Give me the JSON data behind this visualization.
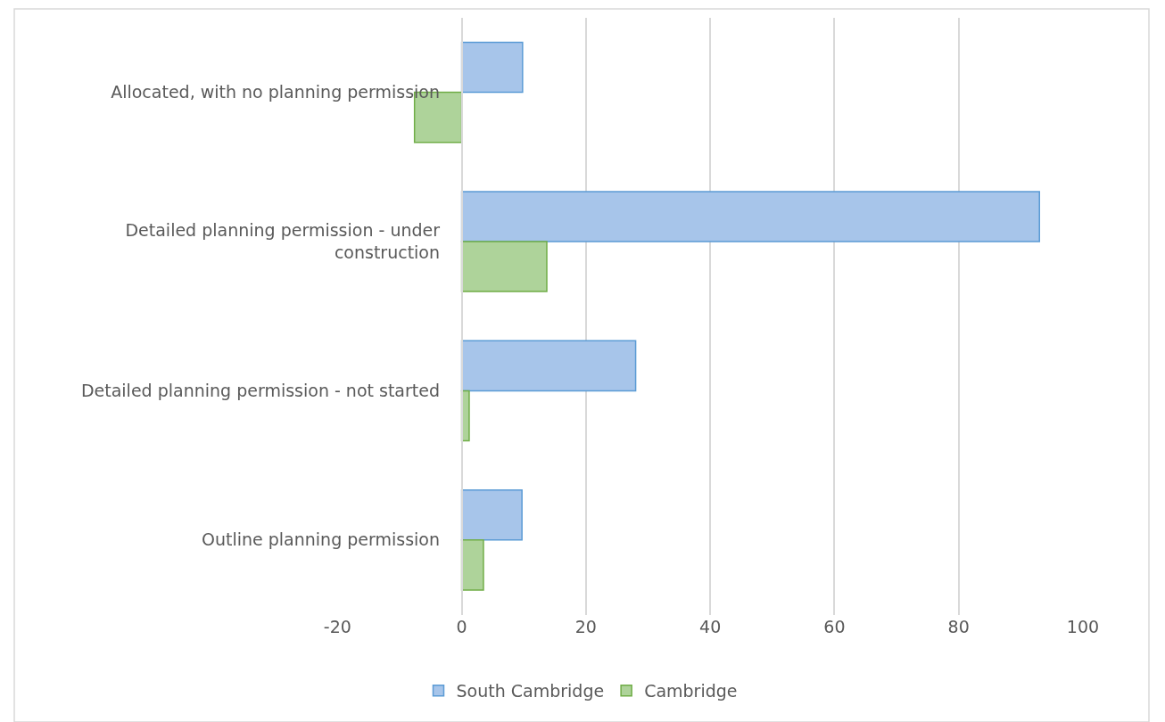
{
  "chart_data": {
    "type": "bar",
    "orientation": "horizontal",
    "categories": [
      "Allocated, with no planning permission",
      "Detailed planning permission - under construction",
      "Detailed planning permission - not started",
      "Outline planning permission"
    ],
    "series": [
      {
        "name": "South Cambridge",
        "color": "#a7c5ea",
        "values": [
          9.8,
          93,
          28,
          9.7
        ]
      },
      {
        "name": "Cambridge",
        "color": "#aed39a",
        "values": [
          -7.6,
          13.7,
          1.2,
          3.5
        ]
      }
    ],
    "xlim": [
      -20,
      100
    ],
    "xticks": [
      -20,
      0,
      20,
      40,
      60,
      80,
      100
    ],
    "grid": "x",
    "legend": "bottom"
  }
}
